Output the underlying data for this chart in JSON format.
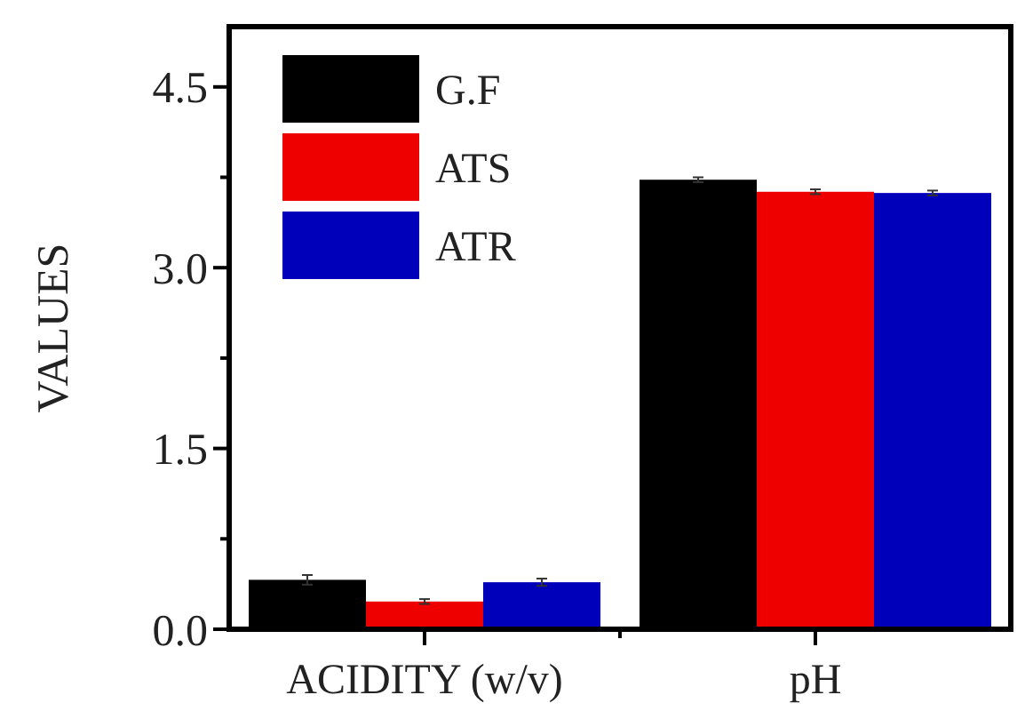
{
  "chart_data": {
    "type": "bar",
    "ylabel": "VALUES",
    "categories": [
      "ACIDITY (w/v)",
      "pH"
    ],
    "series": [
      {
        "name": "G.F",
        "color": "#000000",
        "values": [
          0.41,
          3.73
        ],
        "errors": [
          0.04,
          0.02
        ]
      },
      {
        "name": "ATS",
        "color": "#ee0000",
        "values": [
          0.23,
          3.63
        ],
        "errors": [
          0.02,
          0.02
        ]
      },
      {
        "name": "ATR",
        "color": "#0000bb",
        "values": [
          0.39,
          3.62
        ],
        "errors": [
          0.03,
          0.02
        ]
      }
    ],
    "ylim": [
      0,
      5
    ],
    "yticks": [
      {
        "value": 0,
        "label": "0.0"
      },
      {
        "value": 0.75,
        "label": null
      },
      1.5,
      {
        "value": 2.25,
        "label": null
      },
      {
        "value": 3,
        "label": "3.0"
      },
      {
        "value": 3.75,
        "label": null
      },
      4.5
    ],
    "legend": "top left",
    "grid": false
  }
}
